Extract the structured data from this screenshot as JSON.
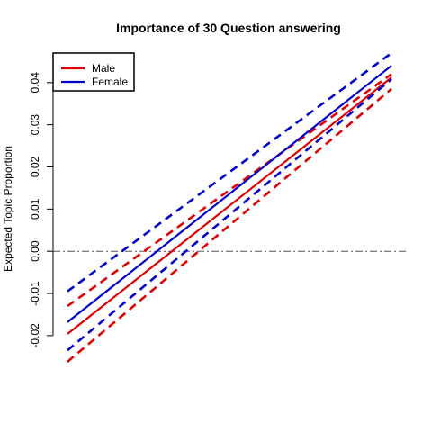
{
  "chart_data": {
    "type": "line",
    "title": "Importance of 30 Question answering",
    "xlabel": "",
    "ylabel": "Expected Topic Proportion",
    "ylim": [
      -0.026,
      0.047
    ],
    "yticks": [
      -0.02,
      -0.01,
      0.0,
      0.01,
      0.02,
      0.03,
      0.04
    ],
    "ytick_labels": [
      "-0.02",
      "-0.01",
      "0.00",
      "0.01",
      "0.02",
      "0.03",
      "0.04"
    ],
    "x_axis_visible": false,
    "xlim": [
      0,
      1
    ],
    "reference_line": {
      "y": 0,
      "style": "dashdot",
      "color": "#555555"
    },
    "legend": {
      "position": "top-left",
      "box": true
    },
    "series": [
      {
        "name": "Male",
        "color": "#e00000",
        "x": [
          0,
          1
        ],
        "estimate": [
          -0.0196,
          0.0412
        ],
        "upper": [
          -0.013,
          0.042
        ],
        "lower": [
          -0.0262,
          0.0385
        ]
      },
      {
        "name": "Female",
        "color": "#0000cc",
        "x": [
          0,
          1
        ],
        "estimate": [
          -0.0168,
          0.044
        ],
        "upper": [
          -0.0095,
          0.047
        ],
        "lower": [
          -0.0235,
          0.0408
        ]
      }
    ]
  }
}
